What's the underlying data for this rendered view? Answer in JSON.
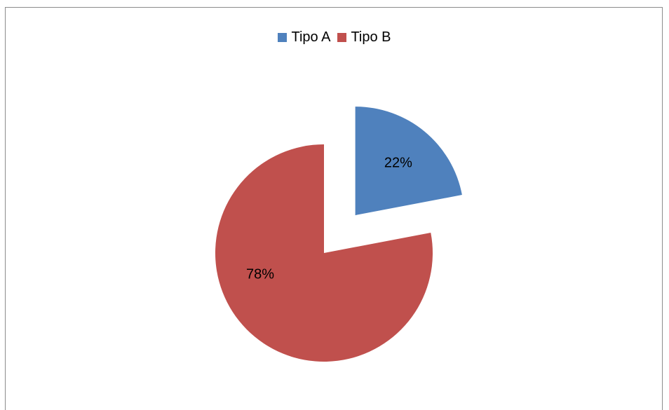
{
  "chart_data": {
    "type": "pie",
    "categories": [
      "Tipo A",
      "Tipo B"
    ],
    "values": [
      22,
      78
    ],
    "data_labels": [
      "22%",
      "78%"
    ],
    "colors": [
      "#4f81bd",
      "#c0504d"
    ],
    "exploded": [
      true,
      false
    ],
    "legend_position": "top",
    "title": ""
  }
}
